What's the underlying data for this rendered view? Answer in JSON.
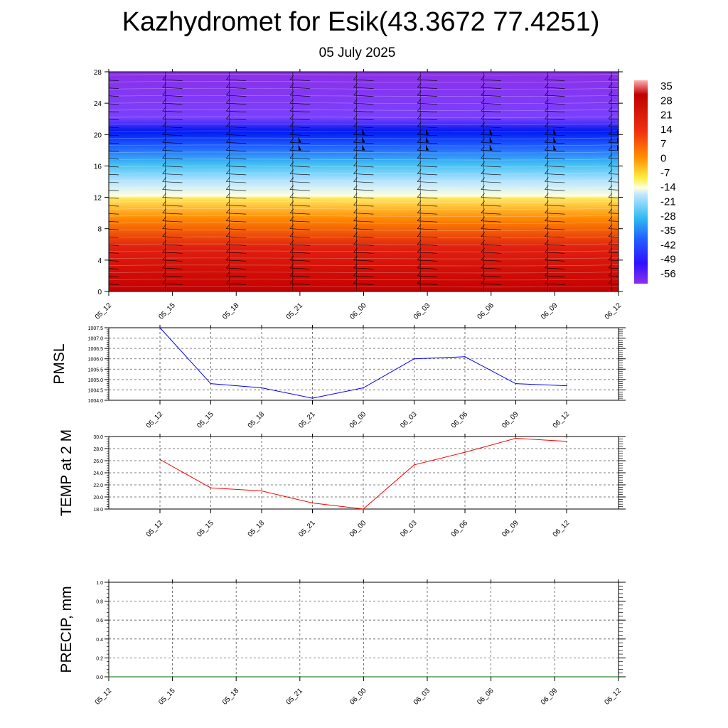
{
  "title": "Kazhydromet for Esik(43.3672 77.4251)",
  "subtitle": "05 July 2025",
  "chart_data": [
    {
      "type": "heatmap",
      "name": "temperature-wind-profile",
      "x_ticks": [
        "05_12",
        "05_15",
        "05_18",
        "05_21",
        "06_00",
        "06_03",
        "06_06",
        "06_09",
        "06_12"
      ],
      "y_ticks": [
        0,
        4,
        8,
        12,
        16,
        20,
        24,
        28
      ],
      "ylim": [
        0,
        28
      ],
      "colorbar_ticks": [
        35,
        28,
        21,
        14,
        7,
        0,
        -7,
        -14,
        -21,
        -28,
        -35,
        -42,
        -49,
        -56
      ],
      "colorbar_range": [
        -63,
        42
      ],
      "barb_heights": [
        1,
        2,
        3,
        4,
        5,
        6,
        7,
        8,
        9,
        10,
        11,
        12,
        13,
        14,
        15,
        16,
        17,
        18,
        19,
        20,
        21,
        22,
        23,
        24,
        25,
        26,
        27
      ],
      "colors": {
        "hot": "#c00000",
        "orange": "#ff7a00",
        "yellow": "#ffff66",
        "light_blue": "#a6e0ff",
        "cyan": "#30b8f0",
        "blue": "#0020ff",
        "purple": "#8a2be2"
      }
    },
    {
      "type": "line",
      "name": "pmsl",
      "ylabel": "PMSL",
      "x": [
        "05_12",
        "05_15",
        "05_18",
        "05_21",
        "06_00",
        "06_03",
        "06_06",
        "06_09",
        "06_12"
      ],
      "series": [
        {
          "values": [
            1007.5,
            1004.8,
            1004.6,
            1004.1,
            1004.6,
            1006.0,
            1006.1,
            1004.8,
            1004.7
          ],
          "color": "#0000ff"
        }
      ],
      "ylim": [
        1004.0,
        1007.5
      ],
      "y_ticks": [
        "1004.0",
        "1004.5",
        "1005.0",
        "1005.5",
        "1006.0",
        "1006.5",
        "1007.0",
        "1007.5"
      ],
      "grid": true
    },
    {
      "type": "line",
      "name": "temp2m",
      "ylabel": "TEMP at 2 M",
      "x": [
        "05_12",
        "05_15",
        "05_18",
        "05_21",
        "06_00",
        "06_03",
        "06_06",
        "06_09",
        "06_12"
      ],
      "series": [
        {
          "values": [
            26.2,
            21.5,
            21.0,
            19.0,
            18.0,
            25.3,
            27.4,
            29.7,
            29.2
          ],
          "color": "#ff0000"
        }
      ],
      "ylim": [
        18.0,
        30.0
      ],
      "y_ticks": [
        "18.0",
        "20.0",
        "22.0",
        "24.0",
        "26.0",
        "28.0",
        "30.0"
      ],
      "grid": true
    },
    {
      "type": "line",
      "name": "precip",
      "ylabel": "PRECIP, mm",
      "x_ticks": [
        "05_12",
        "05_15",
        "05_18",
        "05_21",
        "06_00",
        "06_03",
        "06_06",
        "06_09",
        "06_12"
      ],
      "series": [
        {
          "values": [
            0,
            0,
            0,
            0,
            0,
            0,
            0,
            0,
            0
          ],
          "color": "#006400"
        }
      ],
      "ylim": [
        0.0,
        1.0
      ],
      "y_ticks": [
        "0.0",
        "0.2",
        "0.4",
        "0.6",
        "0.8",
        "1.0"
      ],
      "grid": true
    }
  ]
}
